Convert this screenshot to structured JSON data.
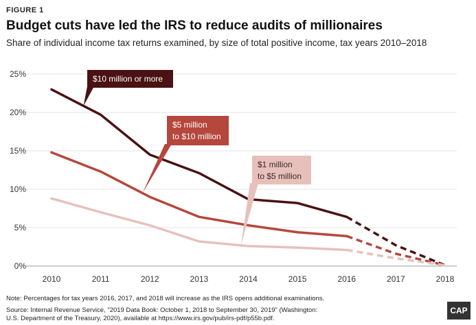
{
  "figure_label": "FIGURE 1",
  "title": "Budget cuts have led the IRS to reduce audits of millionaires",
  "subtitle": "Share of individual income tax returns examined, by size of total positive income, tax years 2010–2018",
  "note": "Note: Percentages for tax years 2016, 2017, and 2018 will increase as the IRS opens additional examinations.",
  "source_line1": "Source: Internal Revenue Service, \"2019 Data Book: October 1, 2018 to September 30, 2019\" (Washington:",
  "source_line2": "U.S. Department of the Treasury, 2020), available at https://www.irs.gov/pub/irs-pdf/p55b.pdf.",
  "logo": "CAP",
  "chart_data": {
    "type": "line",
    "title": "Budget cuts have led the IRS to reduce audits of millionaires",
    "x": [
      2010,
      2011,
      2012,
      2013,
      2014,
      2015,
      2016,
      2017,
      2018
    ],
    "x_tick_labels": [
      "2010",
      "2011",
      "2012",
      "2013",
      "2014",
      "2015",
      "2016",
      "2017",
      "2018"
    ],
    "y_ticks": [
      0,
      5,
      10,
      15,
      20,
      25
    ],
    "y_tick_labels": [
      "0%",
      "5%",
      "10%",
      "15%",
      "20%",
      "25%"
    ],
    "ylim": [
      0,
      25
    ],
    "grid": true,
    "dashed_from": 2016,
    "series": [
      {
        "name": "$10 million or more",
        "label_lines": [
          "$10 million or more"
        ],
        "color": "#4a1212",
        "values": [
          23.0,
          19.7,
          14.5,
          12.1,
          8.7,
          8.2,
          6.4,
          2.7,
          0.1
        ]
      },
      {
        "name": "$5 million to $10 million",
        "label_lines": [
          "$5 million",
          "to $10 million"
        ],
        "color": "#b5473c",
        "values": [
          14.8,
          12.3,
          9.0,
          6.4,
          5.3,
          4.4,
          3.9,
          1.6,
          0.1
        ]
      },
      {
        "name": "$1 million to $5 million",
        "label_lines": [
          "$1 million",
          "to $5 million"
        ],
        "color": "#e8c0bb",
        "values": [
          8.8,
          7.0,
          5.3,
          3.2,
          2.6,
          2.4,
          2.1,
          1.0,
          0.1
        ]
      }
    ]
  }
}
